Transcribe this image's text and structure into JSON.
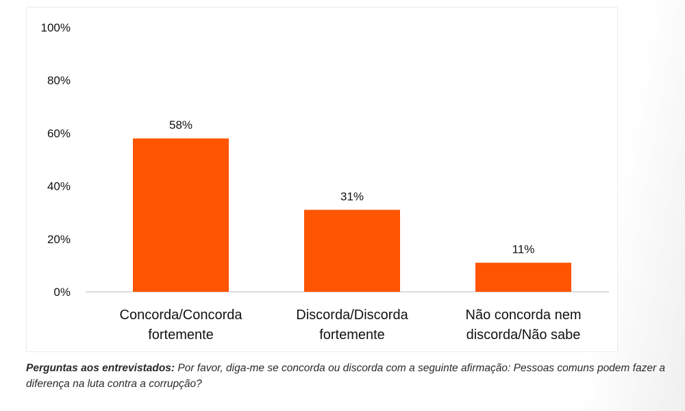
{
  "colors": {
    "bar": "#ff5400",
    "axis": "#d0d0d0",
    "text": "#111111"
  },
  "chart_data": {
    "type": "bar",
    "categories": [
      [
        "Concorda/Concorda",
        "fortemente"
      ],
      [
        "Discorda/Discorda",
        "fortemente"
      ],
      [
        "Não concorda nem",
        "discorda/Não sabe"
      ]
    ],
    "values": [
      58,
      31,
      11
    ],
    "data_labels": [
      "58%",
      "31%",
      "11%"
    ],
    "ylim": [
      0,
      100
    ],
    "yticks": [
      0,
      20,
      40,
      60,
      80,
      100
    ],
    "ytick_labels": [
      "0%",
      "20%",
      "40%",
      "60%",
      "80%",
      "100%"
    ],
    "grid": false,
    "legend": "none"
  },
  "footnote": {
    "lead": "Perguntas aos entrevistados:",
    "text": " Por favor, diga-me se concorda ou discorda com a seguinte afirmação: Pessoas comuns podem fazer a diferença na luta contra a corrupção?"
  }
}
